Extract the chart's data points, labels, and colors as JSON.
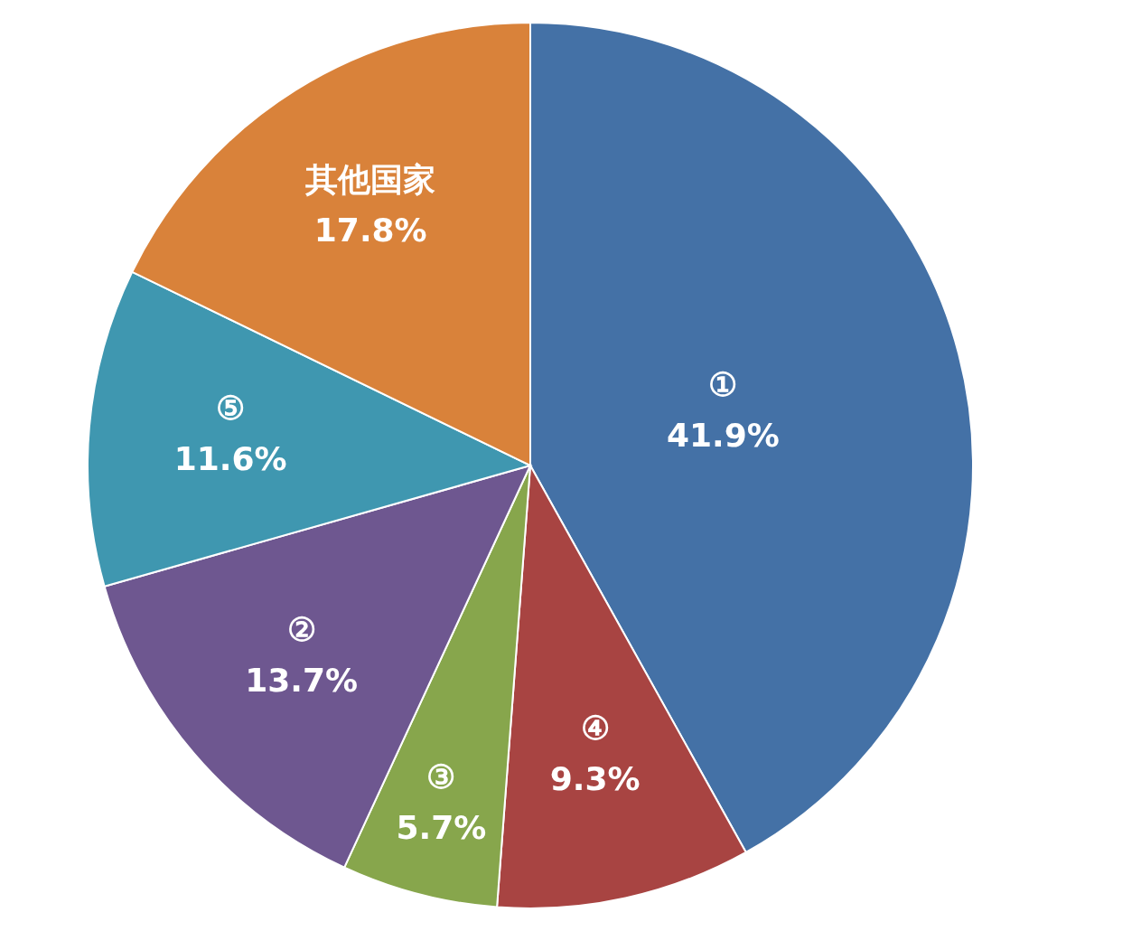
{
  "chart_data": {
    "type": "pie",
    "categories": [
      "①",
      "④",
      "③",
      "②",
      "⑤",
      "其他国家"
    ],
    "values": [
      41.9,
      9.3,
      5.7,
      13.7,
      11.6,
      17.8
    ],
    "colors": [
      "#4471a6",
      "#a84442",
      "#87a64c",
      "#6e5790",
      "#3f97b0",
      "#d9823a"
    ],
    "value_labels": [
      "41.9%",
      "9.3%",
      "5.7%",
      "13.7%",
      "11.6%",
      "17.8%"
    ]
  }
}
